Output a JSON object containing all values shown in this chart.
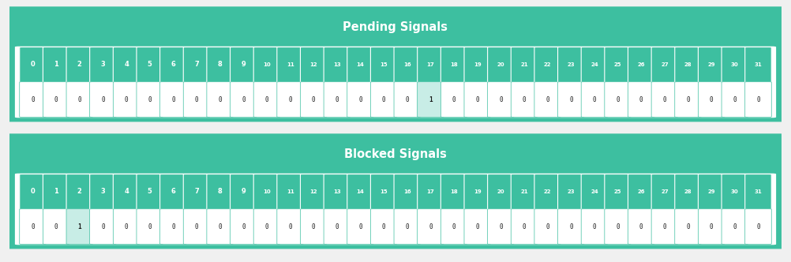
{
  "panels": [
    {
      "title": "Pending Signals",
      "highlight_index": 17,
      "values": [
        0,
        0,
        0,
        0,
        0,
        0,
        0,
        0,
        0,
        0,
        0,
        0,
        0,
        0,
        0,
        0,
        0,
        1,
        0,
        0,
        0,
        0,
        0,
        0,
        0,
        0,
        0,
        0,
        0,
        0,
        0,
        0
      ]
    },
    {
      "title": "Blocked Signals",
      "highlight_index": 2,
      "values": [
        0,
        0,
        1,
        0,
        0,
        0,
        0,
        0,
        0,
        0,
        0,
        0,
        0,
        0,
        0,
        0,
        0,
        0,
        0,
        0,
        0,
        0,
        0,
        0,
        0,
        0,
        0,
        0,
        0,
        0,
        0,
        0
      ]
    }
  ],
  "n_cells": 32,
  "bg_color": "#3dbfa0",
  "cell_bg": "#ffffff",
  "highlight_bg": "#c8ede6",
  "label_text_color": "#ffffff",
  "value_text_color": "#1a1a1a",
  "title_color": "#ffffff",
  "border_color": "#3dbfa0",
  "outer_bg": "#f0f0f0",
  "panel_bg": "#f0f0f0"
}
